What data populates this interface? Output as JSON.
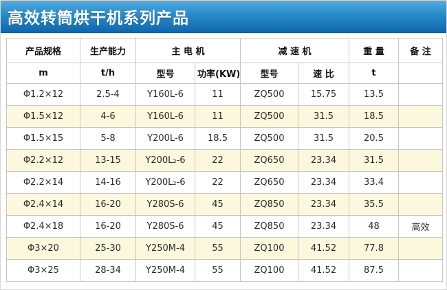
{
  "title": "高效转筒烘干机系列产品",
  "colors": {
    "title_gradient_top": "#55acdf",
    "title_gradient_bottom": "#0f67ad",
    "row_alt_background": "#fcf8dd",
    "table_border": "#c6c6c6"
  },
  "table": {
    "headers": {
      "spec": "产品规格",
      "capacity": "生产能力",
      "main_motor": "主 电 机",
      "reducer": "减 速 机",
      "weight": "重 量",
      "remark": "备 注"
    },
    "subheaders": [
      "m",
      "t/h",
      "型号",
      "功率(KW)",
      "型号",
      "速 比",
      "t",
      ""
    ],
    "cell_names": [
      "spec-cell",
      "capacity-cell",
      "motor-model-cell",
      "motor-power-cell",
      "reducer-model-cell",
      "reducer-ratio-cell",
      "weight-cell",
      "remark-cell"
    ],
    "rows": [
      [
        "Φ1.2×12",
        "2.5-4",
        "Y160L-6",
        "11",
        "ZQ500",
        "15.75",
        "13.5",
        ""
      ],
      [
        "Φ1.5×12",
        "4-6",
        "Y160L-6",
        "11",
        "ZQ500",
        "31.5",
        "18.5",
        ""
      ],
      [
        "Φ1.5×15",
        "5-8",
        "Y200L-6",
        "18.5",
        "ZQ500",
        "31.5",
        "20.5",
        ""
      ],
      [
        "Φ2.2×12",
        "13-15",
        "Y200L₂-6",
        "22",
        "ZQ650",
        "23.34",
        "31.5",
        ""
      ],
      [
        "Φ2.2×14",
        "14-16",
        "Y200L₂-6",
        "22",
        "ZQ650",
        "23.34",
        "33.4",
        ""
      ],
      [
        "Φ2.4×14",
        "16-20",
        "Y280S-6",
        "45",
        "ZQ850",
        "23.34",
        "35.5",
        ""
      ],
      [
        "Φ2.4×18",
        "16-20",
        "Y280S-6",
        "45",
        "ZQ850",
        "23.34",
        "48",
        "高效"
      ],
      [
        "Φ3×20",
        "25-30",
        "Y250M-4",
        "55",
        "ZQ100",
        "41.52",
        "77.8",
        ""
      ],
      [
        "Φ3×25",
        "28-34",
        "Y250M-4",
        "55",
        "ZQ100",
        "41.52",
        "87.5",
        ""
      ]
    ]
  }
}
